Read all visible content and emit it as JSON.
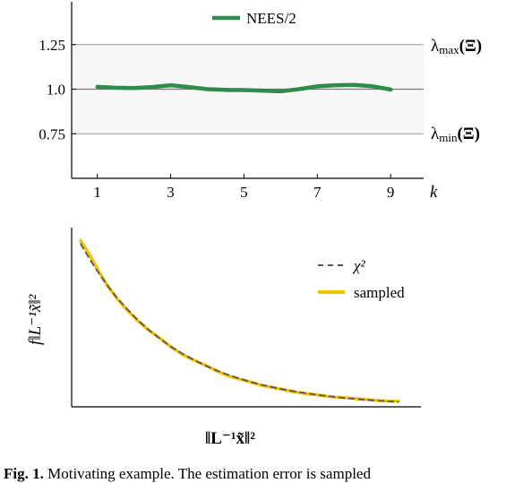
{
  "caption": {
    "label": "Fig. 1.",
    "text": "Motivating example. The estimation error is sampled"
  },
  "chart_data": [
    {
      "type": "line",
      "x": [
        1,
        1.5,
        2,
        2.5,
        3,
        3.5,
        4,
        4.5,
        5,
        5.5,
        6,
        6.5,
        7,
        7.5,
        8,
        8.5,
        9
      ],
      "series": [
        {
          "name": "NEES/2",
          "color": "#2e8b4a",
          "values": [
            1.013,
            1.008,
            1.006,
            1.012,
            1.022,
            1.012,
            1.0,
            0.996,
            0.995,
            0.992,
            0.988,
            1.0,
            1.016,
            1.022,
            1.024,
            1.016,
            0.998
          ]
        }
      ],
      "xticks": [
        "1",
        "3",
        "5",
        "7",
        "9"
      ],
      "xtick_values": [
        1,
        3,
        5,
        7,
        9
      ],
      "yticks": [
        "0.75",
        "1.0",
        "1.25"
      ],
      "ytick_values": [
        0.75,
        1.0,
        1.25
      ],
      "xlabel": "k",
      "xlim": [
        0.3,
        9.9
      ],
      "ylim": [
        0.5,
        1.49
      ],
      "band": {
        "lower": 0.75,
        "upper": 1.25,
        "color": "#f7f7f7"
      },
      "hlines": [
        0.75,
        1.0,
        1.25
      ],
      "right_labels": {
        "upper": {
          "name": "λ",
          "sub": "max",
          "arg": "(Ξ)"
        },
        "lower": {
          "name": "λ",
          "sub": "min",
          "arg": "(Ξ)"
        }
      },
      "legend_placement": "top-center"
    },
    {
      "type": "line",
      "x": [
        0,
        0.2,
        0.4,
        0.6,
        0.8,
        1.0,
        1.25,
        1.5,
        1.75,
        2.0,
        2.25,
        2.5,
        2.75,
        3.0,
        3.25,
        3.5,
        3.75,
        4.0,
        4.25,
        4.5,
        4.75,
        5.0,
        5.25,
        5.5,
        5.75,
        6.0,
        6.25,
        6.5,
        6.75,
        7.0
      ],
      "series": [
        {
          "name": "χ²",
          "style": "dashed",
          "color": "#555555",
          "values": [
            1.0,
            0.905,
            0.819,
            0.741,
            0.67,
            0.607,
            0.535,
            0.472,
            0.417,
            0.368,
            0.325,
            0.287,
            0.253,
            0.223,
            0.197,
            0.174,
            0.153,
            0.135,
            0.119,
            0.105,
            0.093,
            0.082,
            0.072,
            0.064,
            0.056,
            0.05,
            0.044,
            0.039,
            0.034,
            0.03
          ]
        },
        {
          "name": "sampled",
          "style": "solid",
          "color": "#f5c000",
          "values": [
            1.02,
            0.93,
            0.83,
            0.74,
            0.665,
            0.6,
            0.53,
            0.47,
            0.42,
            0.365,
            0.32,
            0.285,
            0.255,
            0.22,
            0.19,
            0.17,
            0.152,
            0.13,
            0.118,
            0.104,
            0.09,
            0.08,
            0.072,
            0.062,
            0.058,
            0.052,
            0.045,
            0.04,
            0.036,
            0.034
          ]
        }
      ],
      "xlabel": "‖L⁻¹x̃‖²",
      "ylabel": "f‖L⁻¹x̃‖²",
      "xlim": [
        -0.2,
        7.5
      ],
      "ylim": [
        0,
        1.1
      ],
      "xticks": [],
      "yticks": [],
      "legend_placement": "top-right"
    }
  ]
}
